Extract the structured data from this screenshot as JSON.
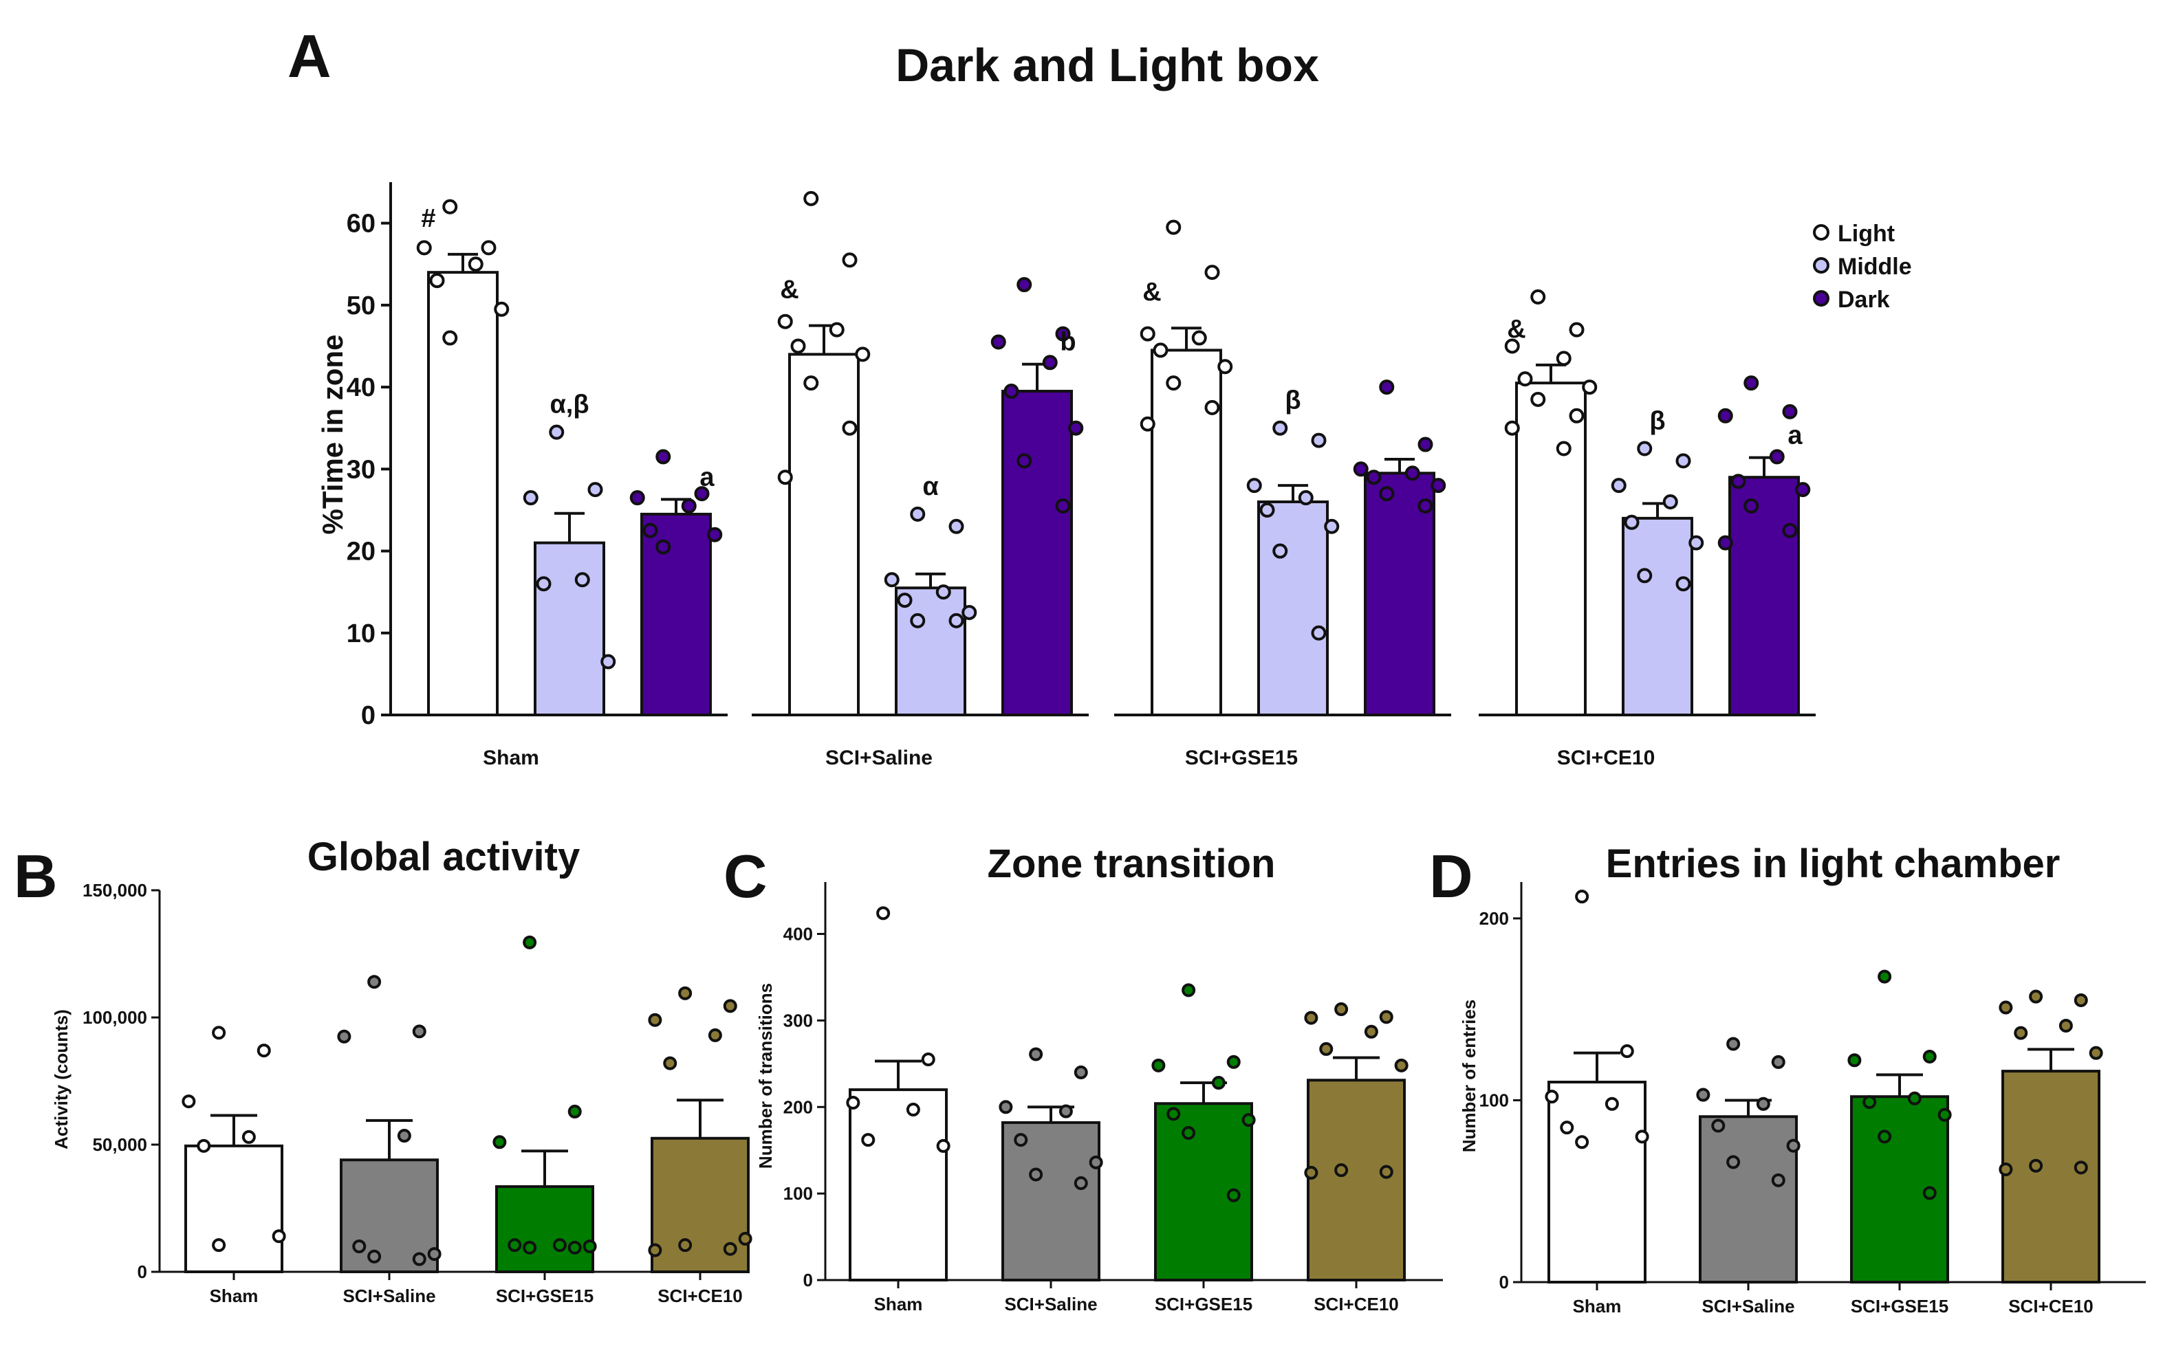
{
  "colors": {
    "light": "#ffffff",
    "middle": "#c4c4f8",
    "dark": "#4a0096",
    "sham": "#ffffff",
    "saline": "#808080",
    "gse15": "#007d00",
    "ce10": "#8b7a37",
    "axis": "#111111"
  },
  "chart_data": [
    {
      "id": "A",
      "panel_label": "A",
      "type": "bar",
      "title": "Dark and Light box",
      "ylabel": "%Time in zone",
      "ylim": [
        0,
        65
      ],
      "yticks": [
        0,
        10,
        20,
        30,
        40,
        50,
        60
      ],
      "groups": [
        "Sham",
        "SCI+Saline",
        "SCI+GSE15",
        "SCI+CE10"
      ],
      "legend": {
        "position": "top-right",
        "entries": [
          "Light",
          "Middle",
          "Dark"
        ]
      },
      "series": [
        {
          "name": "Light",
          "values": [
            54,
            44,
            44.5,
            40.5
          ],
          "sem": [
            2.2,
            3.5,
            2.7,
            2.2
          ],
          "annotations": [
            "#",
            "&",
            "&",
            "&"
          ],
          "points": [
            [
              62,
              57,
              57,
              55,
              53,
              49.5,
              46
            ],
            [
              63,
              55.5,
              48,
              47,
              45,
              44,
              40.5,
              35,
              29
            ],
            [
              59.5,
              54,
              46.5,
              46,
              44.5,
              42.5,
              40.5,
              37.5,
              35.5
            ],
            [
              51,
              47,
              45,
              43.5,
              41,
              40,
              38.5,
              36.5,
              35,
              32.5
            ]
          ]
        },
        {
          "name": "Middle",
          "values": [
            21,
            15.5,
            26,
            24
          ],
          "sem": [
            3.6,
            1.7,
            2.0,
            1.8
          ],
          "annotations": [
            "α,β",
            "α",
            "β",
            "β"
          ],
          "points": [
            [
              34.5,
              27.5,
              26.5,
              16.5,
              16,
              6.5
            ],
            [
              24.5,
              23,
              16.5,
              15,
              14,
              12.5,
              11.5,
              11.5
            ],
            [
              35,
              33.5,
              28,
              26.5,
              25,
              23,
              20,
              10
            ],
            [
              32.5,
              31,
              28,
              26,
              23.5,
              21,
              17,
              16
            ]
          ]
        },
        {
          "name": "Dark",
          "values": [
            24.5,
            39.5,
            29.5,
            29
          ],
          "sem": [
            1.8,
            3.3,
            1.7,
            2.4
          ],
          "annotations": [
            "a",
            "b",
            "",
            "a"
          ],
          "points": [
            [
              31.5,
              27,
              26.5,
              25.5,
              22.5,
              22,
              20.5
            ],
            [
              52.5,
              46.5,
              45.5,
              43,
              39.5,
              35,
              31,
              25.5
            ],
            [
              40,
              33,
              30,
              29.5,
              29,
              28,
              27,
              25.5
            ],
            [
              40.5,
              37,
              36.5,
              31.5,
              28.5,
              27.5,
              25.5,
              22.5,
              21
            ]
          ]
        }
      ]
    },
    {
      "id": "B",
      "panel_label": "B",
      "type": "bar",
      "title": "Global activity",
      "ylabel": "Activity (counts)",
      "ylim": [
        0,
        150000
      ],
      "yticks": [
        0,
        50000,
        100000,
        150000
      ],
      "ytick_labels": [
        "0",
        "50,000",
        "100,000",
        "150,000"
      ],
      "categories": [
        "Sham",
        "SCI+Saline",
        "SCI+GSE15",
        "SCI+CE10"
      ],
      "values": [
        49500,
        44000,
        33500,
        52500
      ],
      "sem": [
        12000,
        15500,
        14000,
        15000
      ],
      "points": [
        [
          94000,
          87000,
          67000,
          53000,
          49500,
          14000,
          10500
        ],
        [
          114000,
          94500,
          92500,
          53500,
          10000,
          7000,
          6000,
          5000
        ],
        [
          129500,
          63000,
          51000,
          10500,
          10500,
          10000,
          9500,
          9500
        ],
        [
          109500,
          104500,
          99000,
          93000,
          82000,
          13000,
          10500,
          9000,
          8500
        ]
      ]
    },
    {
      "id": "C",
      "panel_label": "C",
      "type": "bar",
      "title": "Zone transition",
      "ylabel": "Number of transitions",
      "ylim": [
        0,
        460
      ],
      "yticks": [
        0,
        100,
        200,
        300,
        400
      ],
      "ytick_labels": [
        "0",
        "100",
        "200",
        "300",
        "400"
      ],
      "categories": [
        "Sham",
        "SCI+Saline",
        "SCI+GSE15",
        "SCI+CE10"
      ],
      "values": [
        220,
        182,
        204,
        231
      ],
      "sem": [
        33,
        18,
        24,
        26
      ],
      "points": [
        [
          424,
          255,
          205,
          197,
          162,
          155
        ],
        [
          261,
          240,
          200,
          195,
          162,
          136,
          122,
          112
        ],
        [
          335,
          252,
          248,
          228,
          192,
          185,
          170,
          98
        ],
        [
          313,
          304,
          303,
          287,
          267,
          248,
          127,
          125,
          124
        ]
      ]
    },
    {
      "id": "D",
      "panel_label": "D",
      "type": "bar",
      "title": "Entries in light chamber",
      "ylabel": "Number of entries",
      "ylim": [
        0,
        220
      ],
      "yticks": [
        0,
        100,
        200
      ],
      "ytick_labels": [
        "0",
        "100",
        "200"
      ],
      "categories": [
        "Sham",
        "SCI+Saline",
        "SCI+GSE15",
        "SCI+CE10"
      ],
      "values": [
        110,
        91,
        102,
        116
      ],
      "sem": [
        16,
        9,
        12,
        12
      ],
      "points": [
        [
          212,
          127,
          102,
          98,
          85,
          80,
          77
        ],
        [
          131,
          121,
          103,
          98,
          86,
          75,
          66,
          56
        ],
        [
          168,
          124,
          122,
          101,
          99,
          92,
          80,
          49
        ],
        [
          157,
          155,
          151,
          141,
          137,
          126,
          64,
          63,
          62
        ]
      ]
    }
  ]
}
